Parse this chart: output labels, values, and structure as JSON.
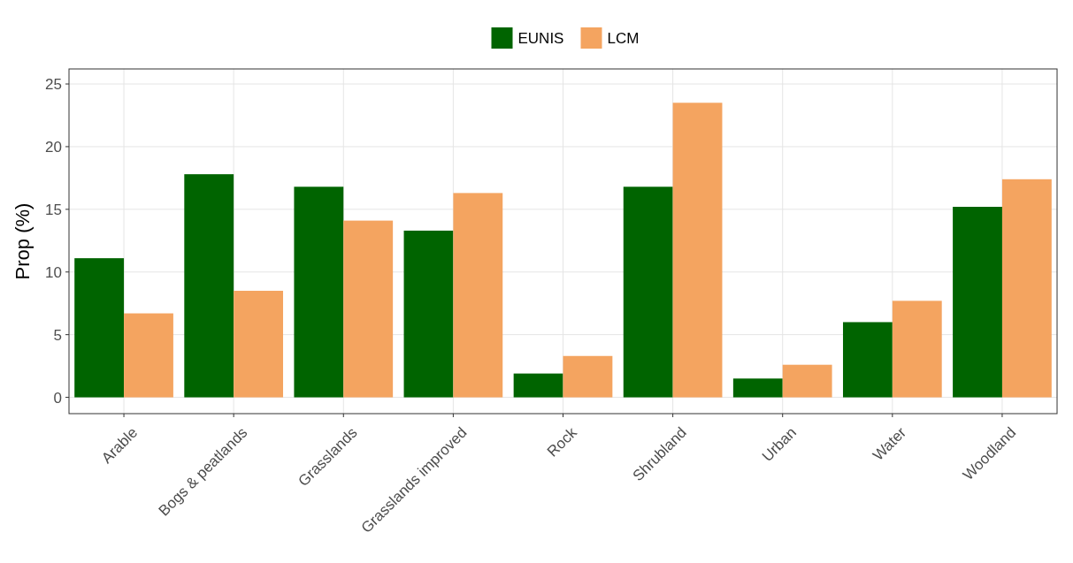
{
  "chart_data": {
    "type": "bar",
    "ylabel": "Prop (%)",
    "categories": [
      "Arable",
      "Bogs & peatlands",
      "Grasslands",
      "Grasslands improved",
      "Rock",
      "Shrubland",
      "Urban",
      "Water",
      "Woodland"
    ],
    "series": [
      {
        "name": "EUNIS",
        "color": "#006400",
        "values": [
          11.1,
          17.8,
          16.8,
          13.3,
          1.9,
          16.8,
          1.5,
          6.0,
          15.2
        ]
      },
      {
        "name": "LCM",
        "color": "#f4a460",
        "values": [
          6.7,
          8.5,
          14.1,
          16.3,
          3.3,
          23.5,
          2.6,
          7.7,
          17.4
        ]
      }
    ],
    "ylim": [
      -1.3,
      26.2
    ],
    "yticks": [
      0,
      5,
      10,
      15,
      20,
      25
    ],
    "grid": true,
    "legend": "top"
  }
}
